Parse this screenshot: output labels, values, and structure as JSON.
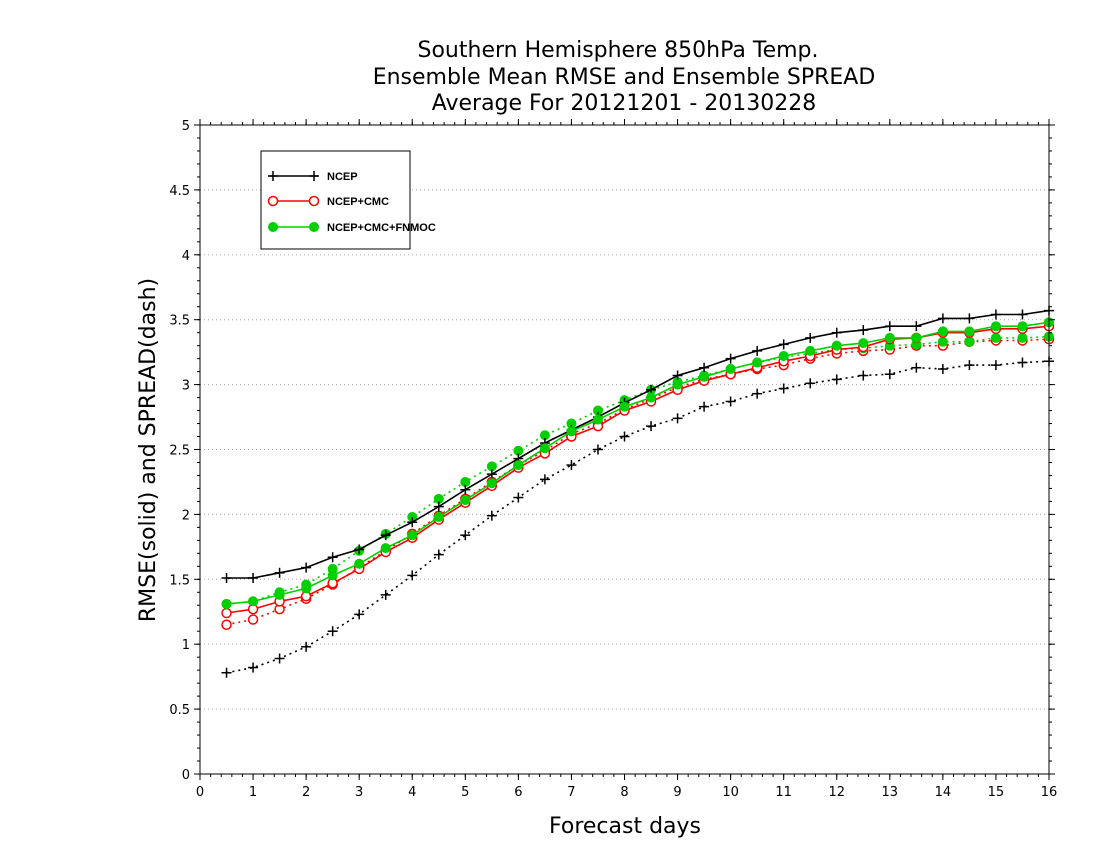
{
  "chart_data": {
    "type": "line",
    "title_lines": [
      "Southern Hemisphere 850hPa Temp.",
      "Ensemble Mean RMSE and Ensemble SPREAD",
      "Average For 20121201 - 20130228"
    ],
    "xlabel": "Forecast days",
    "ylabel": "RMSE(solid) and SPREAD(dash)",
    "xlim": [
      0,
      16
    ],
    "ylim": [
      0,
      5
    ],
    "x_ticks": [
      "0",
      "1",
      "2",
      "3",
      "4",
      "5",
      "6",
      "7",
      "8",
      "9",
      "10",
      "11",
      "12",
      "13",
      "14",
      "15",
      "16"
    ],
    "y_ticks": [
      "0",
      "0.5",
      "1",
      "1.5",
      "2",
      "2.5",
      "3",
      "3.5",
      "4",
      "4.5",
      "5"
    ],
    "grid": "horizontal dotted",
    "legend_position": "top-left",
    "legend": [
      "NCEP",
      "NCEP+CMC",
      "NCEP+CMC+FNMOC"
    ],
    "x": [
      0.5,
      1,
      1.5,
      2,
      2.5,
      3,
      3.5,
      4,
      4.5,
      5,
      5.5,
      6,
      6.5,
      7,
      7.5,
      8,
      8.5,
      9,
      9.5,
      10,
      10.5,
      11,
      11.5,
      12,
      12.5,
      13,
      13.5,
      14,
      14.5,
      15,
      15.5,
      16
    ],
    "series": [
      {
        "name": "NCEP",
        "metric": "RMSE",
        "color": "#000000",
        "marker": "plus",
        "line": "solid",
        "values": [
          1.51,
          1.51,
          1.55,
          1.59,
          1.67,
          1.73,
          1.84,
          1.94,
          2.06,
          2.19,
          2.31,
          2.43,
          2.55,
          2.65,
          2.75,
          2.86,
          2.96,
          3.07,
          3.13,
          3.2,
          3.26,
          3.31,
          3.36,
          3.4,
          3.42,
          3.45,
          3.45,
          3.51,
          3.51,
          3.54,
          3.54,
          3.57
        ]
      },
      {
        "name": "NCEP",
        "metric": "SPREAD",
        "color": "#000000",
        "marker": "plus",
        "line": "dotted",
        "values": [
          0.78,
          0.82,
          0.89,
          0.98,
          1.1,
          1.23,
          1.38,
          1.53,
          1.69,
          1.84,
          1.99,
          2.13,
          2.27,
          2.38,
          2.5,
          2.6,
          2.68,
          2.74,
          2.83,
          2.87,
          2.93,
          2.97,
          3.01,
          3.04,
          3.07,
          3.08,
          3.13,
          3.12,
          3.15,
          3.15,
          3.17,
          3.18
        ]
      },
      {
        "name": "NCEP+CMC",
        "metric": "RMSE",
        "color": "#ff0000",
        "marker": "open-circle",
        "line": "solid",
        "values": [
          1.24,
          1.27,
          1.33,
          1.37,
          1.47,
          1.58,
          1.71,
          1.82,
          1.96,
          2.09,
          2.22,
          2.36,
          2.47,
          2.6,
          2.68,
          2.8,
          2.87,
          2.96,
          3.03,
          3.08,
          3.13,
          3.18,
          3.22,
          3.27,
          3.29,
          3.35,
          3.36,
          3.4,
          3.4,
          3.43,
          3.43,
          3.45
        ]
      },
      {
        "name": "NCEP+CMC",
        "metric": "SPREAD",
        "color": "#ff0000",
        "marker": "open-circle",
        "line": "dotted",
        "values": [
          1.15,
          1.19,
          1.27,
          1.35,
          1.46,
          1.59,
          1.72,
          1.85,
          1.99,
          2.12,
          2.25,
          2.38,
          2.49,
          2.62,
          2.7,
          2.81,
          2.89,
          2.98,
          3.04,
          3.08,
          3.12,
          3.15,
          3.2,
          3.24,
          3.26,
          3.27,
          3.3,
          3.3,
          3.33,
          3.34,
          3.34,
          3.35
        ]
      },
      {
        "name": "NCEP+CMC+FNMOC",
        "metric": "RMSE",
        "color": "#00d000",
        "marker": "filled-circle",
        "line": "solid",
        "values": [
          1.31,
          1.33,
          1.38,
          1.43,
          1.53,
          1.62,
          1.74,
          1.84,
          1.98,
          2.11,
          2.24,
          2.38,
          2.51,
          2.64,
          2.73,
          2.83,
          2.9,
          3.0,
          3.06,
          3.12,
          3.17,
          3.22,
          3.26,
          3.3,
          3.32,
          3.36,
          3.36,
          3.41,
          3.41,
          3.45,
          3.45,
          3.48
        ]
      },
      {
        "name": "NCEP+CMC+FNMOC",
        "metric": "SPREAD",
        "color": "#00d000",
        "marker": "filled-circle",
        "line": "dotted",
        "values": [
          1.31,
          1.33,
          1.4,
          1.46,
          1.58,
          1.72,
          1.85,
          1.98,
          2.12,
          2.25,
          2.37,
          2.49,
          2.61,
          2.7,
          2.8,
          2.88,
          2.96,
          3.02,
          3.07,
          3.12,
          3.17,
          3.21,
          3.24,
          3.27,
          3.28,
          3.3,
          3.31,
          3.33,
          3.33,
          3.36,
          3.36,
          3.37
        ]
      }
    ]
  }
}
